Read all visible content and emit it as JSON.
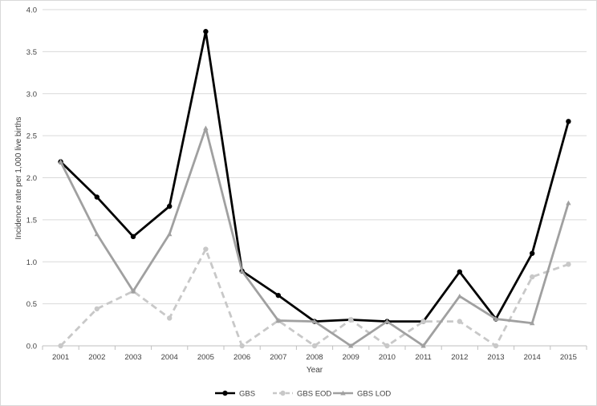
{
  "chart_data": {
    "type": "line",
    "title": "",
    "xlabel": "Year",
    "ylabel": "Incidence rate per 1,000 live births",
    "categories": [
      "2001",
      "2002",
      "2003",
      "2004",
      "2005",
      "2006",
      "2007",
      "2008",
      "2009",
      "2010",
      "2011",
      "2012",
      "2013",
      "2014",
      "2015"
    ],
    "ylim": [
      0,
      4.0
    ],
    "yticks": [
      "0.0",
      "0.5",
      "1.0",
      "1.5",
      "2.0",
      "2.5",
      "3.0",
      "3.5",
      "4.0"
    ],
    "grid": true,
    "legend_position": "bottom",
    "series": [
      {
        "name": "GBS",
        "color": "#000000",
        "line_style": "solid",
        "marker": "circle",
        "values": [
          2.19,
          1.77,
          1.3,
          1.66,
          3.74,
          0.89,
          0.6,
          0.29,
          0.31,
          0.29,
          0.29,
          0.88,
          0.32,
          1.1,
          2.67
        ]
      },
      {
        "name": "GBS EOD",
        "color": "#c8c8c8",
        "line_style": "dashed",
        "marker": "circle",
        "values": [
          0.0,
          0.44,
          0.65,
          0.33,
          1.15,
          0.0,
          0.3,
          0.0,
          0.31,
          0.0,
          0.29,
          0.29,
          0.0,
          0.82,
          0.97
        ]
      },
      {
        "name": "GBS LOD",
        "color": "#a0a0a0",
        "line_style": "solid",
        "marker": "triangle",
        "values": [
          2.19,
          1.33,
          0.65,
          1.33,
          2.59,
          0.89,
          0.3,
          0.29,
          0.0,
          0.29,
          0.0,
          0.59,
          0.32,
          0.27,
          1.7
        ]
      }
    ]
  }
}
